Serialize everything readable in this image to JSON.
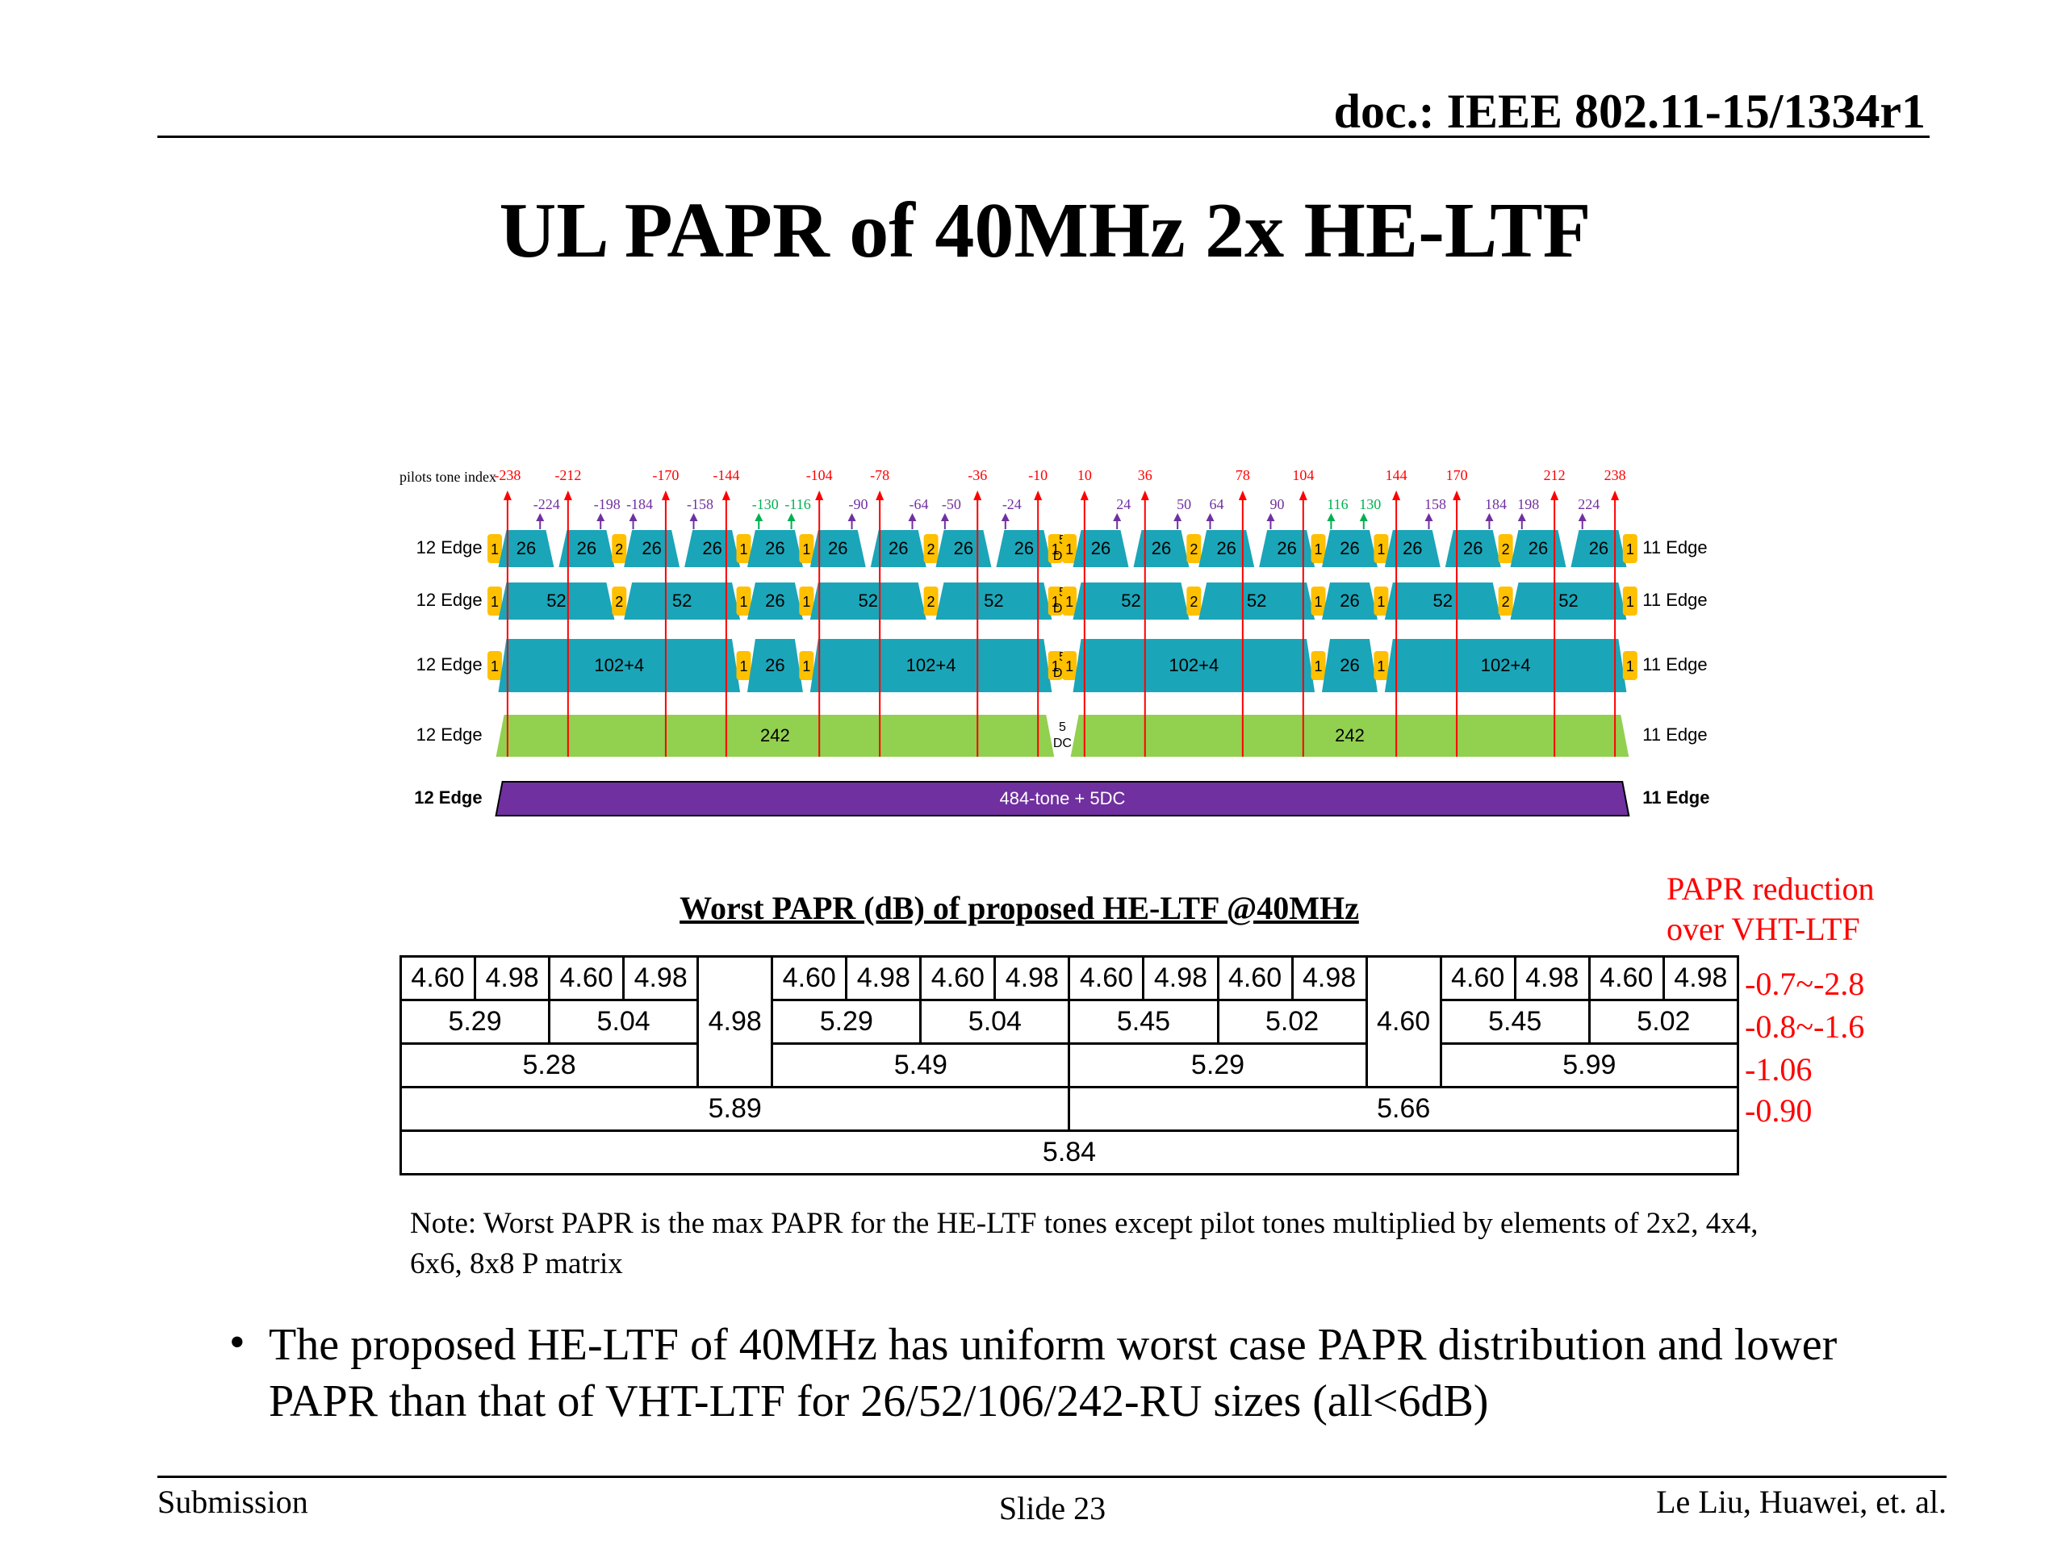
{
  "header": {
    "doc": "doc.: IEEE 802.11-15/1334r1"
  },
  "title": "UL PAPR of 40MHz 2x HE-LTF",
  "diagram": {
    "pilot_label": "pilots tone index",
    "pilots_red": [
      -238,
      -212,
      -170,
      -144,
      -104,
      -78,
      -36,
      -10,
      10,
      36,
      78,
      104,
      144,
      170,
      212,
      238
    ],
    "pilots_purple": [
      -224,
      -198,
      -184,
      -158,
      -90,
      -64,
      -50,
      -24,
      24,
      50,
      64,
      90,
      158,
      184,
      198,
      224
    ],
    "pilots_green": [
      -130,
      -116,
      116,
      130
    ],
    "red_color": "#ff0000",
    "purple_color": "#7030a0",
    "green_color": "#00b050",
    "filler_color": "#ffc000",
    "rows": [
      {
        "left": "12 Edge",
        "right": "11 Edge",
        "color": "#1ba5b8",
        "text_color": "#000000",
        "blocks": [
          {
            "label": "1"
          },
          {
            "label": "26"
          },
          {
            "label": "26"
          },
          {
            "label": "2"
          },
          {
            "label": "26"
          },
          {
            "label": "26"
          },
          {
            "label": "1"
          },
          {
            "label": "26"
          },
          {
            "label": "1"
          },
          {
            "label": "26"
          },
          {
            "label": "26"
          },
          {
            "label": "2"
          },
          {
            "label": "26"
          },
          {
            "label": "26"
          },
          {
            "label": "1"
          },
          {
            "label": "5",
            "sub": "DC"
          },
          {
            "label": "1"
          },
          {
            "label": "26"
          },
          {
            "label": "26"
          },
          {
            "label": "2"
          },
          {
            "label": "26"
          },
          {
            "label": "26"
          },
          {
            "label": "1"
          },
          {
            "label": "26"
          },
          {
            "label": "1"
          },
          {
            "label": "26"
          },
          {
            "label": "26"
          },
          {
            "label": "2"
          },
          {
            "label": "26"
          },
          {
            "label": "26"
          },
          {
            "label": "1"
          }
        ]
      },
      {
        "left": "12 Edge",
        "right": "11 Edge",
        "color": "#1ba5b8",
        "text_color": "#000000",
        "blocks": [
          {
            "label": "1"
          },
          {
            "label": "52"
          },
          {
            "label": "2"
          },
          {
            "label": "52"
          },
          {
            "label": "1"
          },
          {
            "label": "26"
          },
          {
            "label": "1"
          },
          {
            "label": "52"
          },
          {
            "label": "2"
          },
          {
            "label": "52"
          },
          {
            "label": "1"
          },
          {
            "label": "5",
            "sub": "DC"
          },
          {
            "label": "1"
          },
          {
            "label": "52"
          },
          {
            "label": "2"
          },
          {
            "label": "52"
          },
          {
            "label": "1"
          },
          {
            "label": "26"
          },
          {
            "label": "1"
          },
          {
            "label": "52"
          },
          {
            "label": "2"
          },
          {
            "label": "52"
          },
          {
            "label": "1"
          }
        ]
      },
      {
        "left": "12 Edge",
        "right": "11 Edge",
        "color": "#1ba5b8",
        "text_color": "#000000",
        "blocks": [
          {
            "label": "1"
          },
          {
            "label": "102+4"
          },
          {
            "label": "1"
          },
          {
            "label": "26"
          },
          {
            "label": "1"
          },
          {
            "label": "102+4"
          },
          {
            "label": "1"
          },
          {
            "label": "5",
            "sub": "DC"
          },
          {
            "label": "1"
          },
          {
            "label": "102+4"
          },
          {
            "label": "1"
          },
          {
            "label": "26"
          },
          {
            "label": "1"
          },
          {
            "label": "102+4"
          },
          {
            "label": "1"
          }
        ]
      },
      {
        "left": "12 Edge",
        "right": "11 Edge",
        "color": "#92d050",
        "text_color": "#000000",
        "blocks": [
          {
            "label": "242"
          },
          {
            "label": "5",
            "sub": "DC"
          },
          {
            "label": "242"
          }
        ]
      },
      {
        "left": "12 Edge",
        "right": "11 Edge",
        "color": "#7030a0",
        "text_color": "#ffffff",
        "blocks": [
          {
            "label": "484-tone + 5DC"
          }
        ]
      }
    ]
  },
  "table": {
    "title": "Worst PAPR (dB) of proposed HE-LTF @40MHz",
    "rows": [
      [
        "4.60",
        "4.98",
        "4.60",
        "4.98",
        "4.98",
        "4.60",
        "4.98",
        "4.60",
        "4.98",
        "4.60",
        "4.98",
        "4.60",
        "4.98",
        "4.60",
        "4.60",
        "4.98",
        "4.60",
        "4.98"
      ],
      [
        "5.29",
        "5.04",
        "5.29",
        "5.04",
        "5.45",
        "5.02",
        "5.45",
        "5.02"
      ],
      [
        "5.28",
        "5.49",
        "5.29",
        "5.99"
      ],
      [
        "5.89",
        "5.66"
      ],
      [
        "5.84"
      ]
    ],
    "reduction_title": [
      "PAPR reduction",
      "over VHT-LTF"
    ],
    "reduction": [
      "-0.7~-2.8",
      "-0.8~-1.6",
      "-1.06",
      "-0.90"
    ]
  },
  "note": "Note: Worst PAPR is the max PAPR for the HE-LTF tones except pilot tones multiplied by elements of 2x2, 4x4, 6x6, 8x8 P matrix",
  "bullets": [
    "The proposed HE-LTF of 40MHz has uniform worst case PAPR distribution and lower PAPR than that of VHT-LTF for 26/52/106/242-RU sizes (all<6dB)"
  ],
  "footer": {
    "left": "Submission",
    "center": "Slide 23",
    "right": "Le Liu, Huawei, et. al."
  }
}
